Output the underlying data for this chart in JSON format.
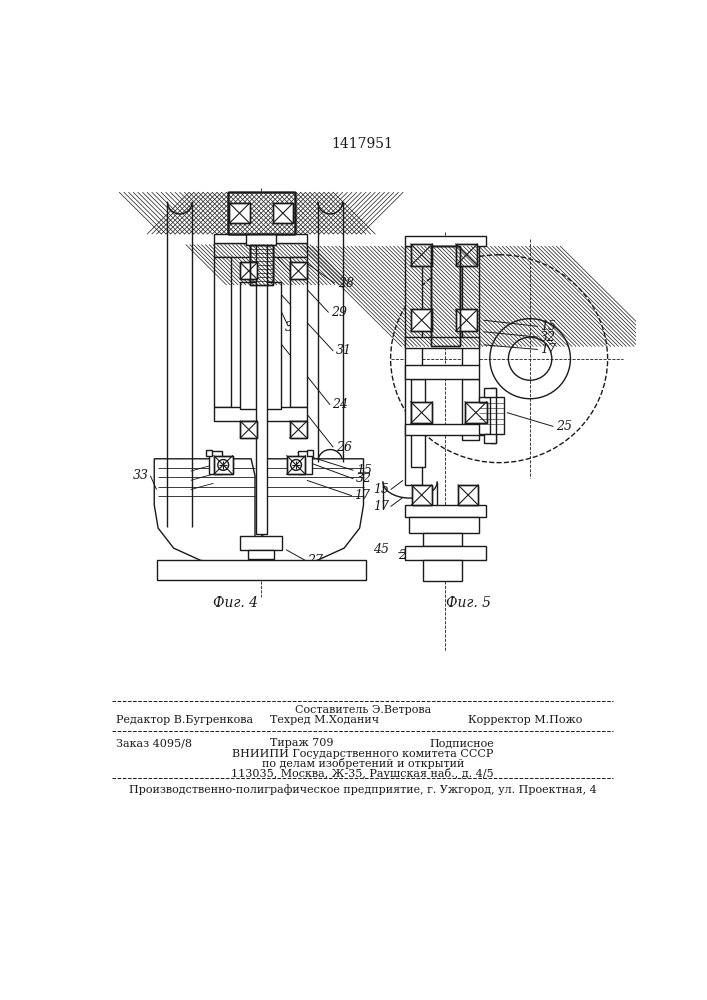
{
  "patent_number": "1417951",
  "fig4_label": "Фиг. 4",
  "fig5_label": "Фиг. 5",
  "bg_color": "#ffffff",
  "line_color": "#1a1a1a",
  "footer_sestavitel": "Составитель Э.Ветрова",
  "footer_redaktor": "Редактор В.Бугренкова",
  "footer_tehred": "Техред М.Ходанич",
  "footer_korrektor": "Корректор М.Пожо",
  "footer_zakaz": "Заказ 4095/8",
  "footer_tirazh": "Тираж 709",
  "footer_podpisnoe": "Подписное",
  "footer_vniipи": "ВНИИПИ Государственного комитета СССР",
  "footer_dela": "по делам изобретений и открытий",
  "footer_addr": "113035, Москва, Ж-35, Раушская наб., д. 4/5",
  "footer_uzh": "Производственно-полиграфическое предприятие, г. Ужгород, ул. Проектная, 4"
}
